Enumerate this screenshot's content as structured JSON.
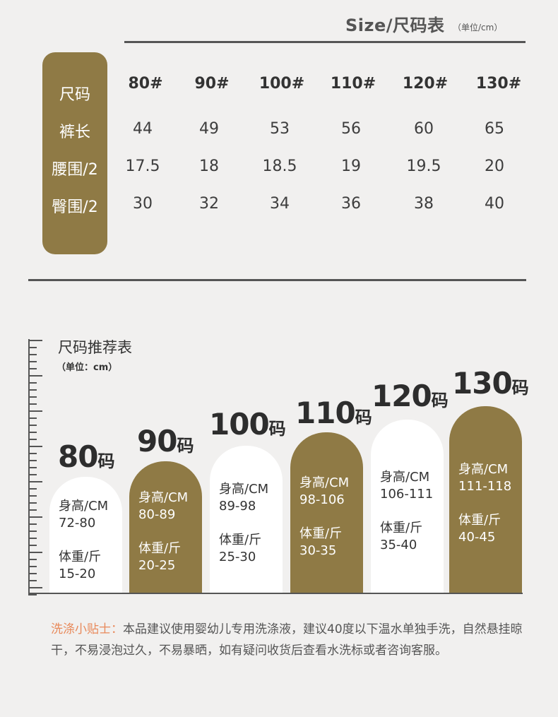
{
  "size_table": {
    "title": "Size/尺码表",
    "unit": "（单位/cm）",
    "row_labels": [
      "尺码",
      "裤长",
      "腰围/2",
      "臀围/2"
    ],
    "sizes": [
      "80#",
      "90#",
      "100#",
      "110#",
      "120#",
      "130#"
    ],
    "pants_length": [
      "44",
      "49",
      "53",
      "56",
      "60",
      "65"
    ],
    "half_waist": [
      "17.5",
      "18",
      "18.5",
      "19",
      "19.5",
      "20"
    ],
    "half_hip": [
      "30",
      "32",
      "34",
      "36",
      "38",
      "40"
    ]
  },
  "recommendation": {
    "title": "尺码推荐表",
    "unit": "（单位：cm）",
    "bars": [
      {
        "num": "80",
        "suffix": "码",
        "height_label": "身高/CM",
        "height_range": "72-80",
        "weight_label": "体重/斤",
        "weight_range": "15-20",
        "style": "light"
      },
      {
        "num": "90",
        "suffix": "码",
        "height_label": "身高/CM",
        "height_range": "80-89",
        "weight_label": "体重/斤",
        "weight_range": "20-25",
        "style": "dark"
      },
      {
        "num": "100",
        "suffix": "码",
        "height_label": "身高/CM",
        "height_range": "89-98",
        "weight_label": "体重/斤",
        "weight_range": "25-30",
        "style": "light"
      },
      {
        "num": "110",
        "suffix": "码",
        "height_label": "身高/CM",
        "height_range": "98-106",
        "weight_label": "体重/斤",
        "weight_range": "30-35",
        "style": "dark"
      },
      {
        "num": "120",
        "suffix": "码",
        "height_label": "身高/CM",
        "height_range": "106-111",
        "weight_label": "体重/斤",
        "weight_range": "35-40",
        "style": "light"
      },
      {
        "num": "130",
        "suffix": "码",
        "height_label": "身高/CM",
        "height_range": "111-118",
        "weight_label": "体重/斤",
        "weight_range": "40-45",
        "style": "dark"
      }
    ]
  },
  "tip": {
    "label": "洗涤小贴士：",
    "text": "本品建议使用婴幼儿专用洗涤液，建议40度以下温水单独手洗，自然悬挂晾干，不易浸泡过久，不易暴晒，如有疑问收货后查看水洗标或者咨询客服。"
  },
  "colors": {
    "brand_brown": "#8f7a45",
    "tip_accent": "#e8895a",
    "background": "#f1f0ef"
  }
}
